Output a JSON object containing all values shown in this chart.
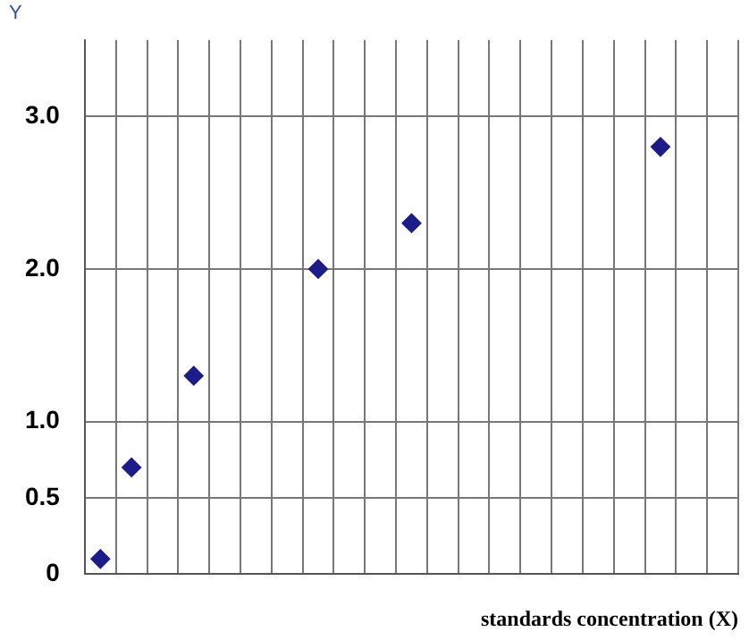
{
  "chart_data": {
    "type": "scatter",
    "xlabel": "standards concentration (X)",
    "ylabel": "Y",
    "categories": [
      null,
      null,
      null,
      null,
      null,
      null,
      null,
      null,
      null,
      null,
      null,
      null,
      null,
      null,
      null,
      null,
      null,
      null,
      null,
      null,
      null
    ],
    "values": [
      0.1,
      0.7,
      null,
      1.3,
      null,
      null,
      null,
      2.0,
      null,
      null,
      2.3,
      null,
      null,
      null,
      null,
      null,
      null,
      null,
      2.8,
      null,
      null
    ],
    "color": "#1c1c8a",
    "marker": "diamond",
    "ylim": [
      0,
      3.5
    ],
    "yticks": [
      0,
      0.5,
      {
        "value": 1,
        "label": "1.0"
      },
      {
        "value": 2,
        "label": "2.0"
      },
      {
        "value": 3,
        "label": "3.0"
      }
    ],
    "grid": true,
    "legend": false
  }
}
